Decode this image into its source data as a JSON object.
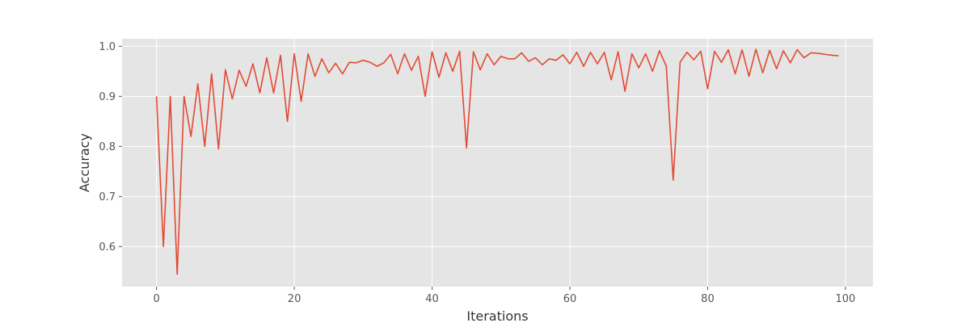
{
  "chart_data": {
    "type": "line",
    "title": "",
    "xlabel": "Iterations",
    "ylabel": "Accuracy",
    "xlim": [
      -5,
      104
    ],
    "ylim": [
      0.52,
      1.015
    ],
    "xticks": [
      0,
      20,
      40,
      60,
      80,
      100
    ],
    "yticks": [
      0.6,
      0.7,
      0.8,
      0.9,
      1.0
    ],
    "xtick_labels": [
      "0",
      "20",
      "40",
      "60",
      "80",
      "100"
    ],
    "ytick_labels": [
      "0.6",
      "0.7",
      "0.8",
      "0.9",
      "1.0"
    ],
    "grid": true,
    "colors": {
      "background": "#e5e5e5",
      "series": "#e24a33"
    },
    "series": [
      {
        "x": [
          0,
          1,
          2,
          3,
          4,
          5,
          6,
          7,
          8,
          9,
          10,
          11,
          12,
          13,
          14,
          15,
          16,
          17,
          18,
          19,
          20,
          21,
          22,
          23,
          24,
          25,
          26,
          27,
          28,
          29,
          30,
          31,
          32,
          33,
          34,
          35,
          36,
          37,
          38,
          39,
          40,
          41,
          42,
          43,
          44,
          45,
          46,
          47,
          48,
          49,
          50,
          51,
          52,
          53,
          54,
          55,
          56,
          57,
          58,
          59,
          60,
          61,
          62,
          63,
          64,
          65,
          66,
          67,
          68,
          69,
          70,
          71,
          72,
          73,
          74,
          75,
          76,
          77,
          78,
          79,
          80,
          81,
          82,
          83,
          84,
          85,
          86,
          87,
          88,
          89,
          90,
          91,
          92,
          93,
          94,
          95,
          96,
          97,
          98,
          99
        ],
        "values": [
          0.9,
          0.6,
          0.9,
          0.545,
          0.9,
          0.82,
          0.925,
          0.8,
          0.945,
          0.795,
          0.953,
          0.895,
          0.952,
          0.92,
          0.965,
          0.907,
          0.977,
          0.907,
          0.982,
          0.85,
          0.985,
          0.89,
          0.985,
          0.94,
          0.975,
          0.947,
          0.966,
          0.945,
          0.968,
          0.967,
          0.972,
          0.968,
          0.96,
          0.967,
          0.984,
          0.945,
          0.985,
          0.952,
          0.98,
          0.9,
          0.989,
          0.938,
          0.987,
          0.95,
          0.99,
          0.797,
          0.989,
          0.953,
          0.985,
          0.963,
          0.98,
          0.975,
          0.975,
          0.987,
          0.97,
          0.977,
          0.963,
          0.975,
          0.972,
          0.983,
          0.965,
          0.988,
          0.96,
          0.988,
          0.965,
          0.988,
          0.933,
          0.989,
          0.91,
          0.985,
          0.957,
          0.985,
          0.95,
          0.991,
          0.96,
          0.733,
          0.968,
          0.988,
          0.973,
          0.99,
          0.915,
          0.99,
          0.968,
          0.993,
          0.945,
          0.993,
          0.94,
          0.994,
          0.947,
          0.992,
          0.955,
          0.991,
          0.967,
          0.993,
          0.977,
          0.987,
          0.986,
          0.984,
          0.982,
          0.981
        ]
      }
    ]
  }
}
